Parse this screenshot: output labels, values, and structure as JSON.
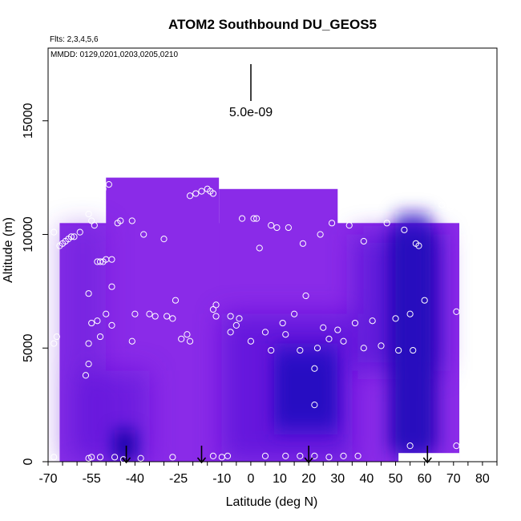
{
  "chart_data": {
    "type": "heatmap",
    "title": "ATOM2 Southbound DU_GEOS5",
    "subtitle_flights": "Flts: 2,3,4,5,6",
    "subtitle_dates": "MMDD: 0129,0201,0203,0205,0210",
    "xlabel": "Latitude (deg N)",
    "ylabel": "Altitude (m)",
    "xlim": [
      -70,
      85
    ],
    "ylim": [
      0,
      18200
    ],
    "x_ticks": [
      -70,
      -55,
      -40,
      -25,
      -10,
      0,
      10,
      20,
      30,
      40,
      50,
      60,
      70,
      80
    ],
    "y_ticks": [
      0,
      5000,
      10000,
      15000
    ],
    "scale_label": "5.0e-09",
    "colors": {
      "base": "#8a2be8",
      "mid": "#5a16d8",
      "dark": "#2f0cc8",
      "darkest": "#0f04a8",
      "points": "#ffffff",
      "arrows": "#000000"
    },
    "field_extent": {
      "lat_min": -66,
      "lat_max": 72,
      "upper_block": {
        "lat": [
          -50,
          -11
        ],
        "alt_top": 12500
      },
      "mid_block": {
        "lat": [
          -11,
          30
        ],
        "alt_top": 12000
      },
      "left_top": 10500
    },
    "dark_regions": [
      {
        "name": "southern low-level core",
        "lat": [
          -47,
          -40
        ],
        "alt": [
          0,
          1400
        ]
      },
      {
        "name": "tropical core",
        "lat": [
          8,
          30
        ],
        "alt": [
          1800,
          4500
        ]
      },
      {
        "name": "northern column",
        "lat": [
          48,
          64
        ],
        "alt": [
          500,
          10200
        ]
      }
    ],
    "arrows_lat": [
      -43,
      -17,
      20,
      61
    ],
    "sample_points": [
      {
        "x": -68,
        "y": 10100
      },
      {
        "x": -66,
        "y": 9500
      },
      {
        "x": -65,
        "y": 9600
      },
      {
        "x": -64,
        "y": 9700
      },
      {
        "x": -63,
        "y": 9800
      },
      {
        "x": -62,
        "y": 9900
      },
      {
        "x": -61,
        "y": 9900
      },
      {
        "x": -59,
        "y": 10100
      },
      {
        "x": -56,
        "y": 10900
      },
      {
        "x": -54,
        "y": 10400
      },
      {
        "x": -55,
        "y": 10600
      },
      {
        "x": -53,
        "y": 8800
      },
      {
        "x": -52,
        "y": 8800
      },
      {
        "x": -51,
        "y": 8800
      },
      {
        "x": -50,
        "y": 8900
      },
      {
        "x": -48,
        "y": 8900
      },
      {
        "x": -53,
        "y": 11800
      },
      {
        "x": -51,
        "y": 12000
      },
      {
        "x": -49,
        "y": 12200
      },
      {
        "x": -46,
        "y": 10500
      },
      {
        "x": -45,
        "y": 10600
      },
      {
        "x": -41,
        "y": 10600
      },
      {
        "x": -37,
        "y": 10000
      },
      {
        "x": -30,
        "y": 9800
      },
      {
        "x": -56,
        "y": 7400
      },
      {
        "x": -48,
        "y": 7700
      },
      {
        "x": -50,
        "y": 6500
      },
      {
        "x": -53,
        "y": 6200
      },
      {
        "x": -55,
        "y": 6100
      },
      {
        "x": -48,
        "y": 6000
      },
      {
        "x": -40,
        "y": 6500
      },
      {
        "x": -35,
        "y": 6500
      },
      {
        "x": -33,
        "y": 6400
      },
      {
        "x": -27,
        "y": 6300
      },
      {
        "x": -29,
        "y": 6400
      },
      {
        "x": -26,
        "y": 7100
      },
      {
        "x": -21,
        "y": 5300
      },
      {
        "x": -22,
        "y": 5600
      },
      {
        "x": -24,
        "y": 5400
      },
      {
        "x": -41,
        "y": 5300
      },
      {
        "x": -52,
        "y": 5500
      },
      {
        "x": -56,
        "y": 5200
      },
      {
        "x": -56,
        "y": 4300
      },
      {
        "x": -57,
        "y": 3800
      },
      {
        "x": -67,
        "y": 5500
      },
      {
        "x": -68,
        "y": 5200
      },
      {
        "x": -68,
        "y": 200
      },
      {
        "x": -56,
        "y": 150
      },
      {
        "x": -55,
        "y": 200
      },
      {
        "x": -52,
        "y": 200
      },
      {
        "x": -47,
        "y": 200
      },
      {
        "x": -44,
        "y": 100
      },
      {
        "x": -38,
        "y": 150
      },
      {
        "x": -27,
        "y": 200
      },
      {
        "x": -13,
        "y": 250
      },
      {
        "x": -10,
        "y": 200
      },
      {
        "x": -8,
        "y": 250
      },
      {
        "x": 5,
        "y": 250
      },
      {
        "x": 12,
        "y": 250
      },
      {
        "x": 17,
        "y": 250
      },
      {
        "x": 22,
        "y": 250
      },
      {
        "x": 27,
        "y": 200
      },
      {
        "x": 32,
        "y": 250
      },
      {
        "x": 37,
        "y": 250
      },
      {
        "x": 55,
        "y": 700
      },
      {
        "x": 71,
        "y": 700
      },
      {
        "x": -21,
        "y": 11700
      },
      {
        "x": -19,
        "y": 11800
      },
      {
        "x": -17,
        "y": 11900
      },
      {
        "x": -15,
        "y": 12000
      },
      {
        "x": -14,
        "y": 11900
      },
      {
        "x": -13,
        "y": 11800
      },
      {
        "x": -3,
        "y": 10700
      },
      {
        "x": 1,
        "y": 10700
      },
      {
        "x": 2,
        "y": 10700
      },
      {
        "x": 7,
        "y": 10400
      },
      {
        "x": 9,
        "y": 10300
      },
      {
        "x": 13,
        "y": 10300
      },
      {
        "x": 18,
        "y": 9600
      },
      {
        "x": 24,
        "y": 10000
      },
      {
        "x": 28,
        "y": 10500
      },
      {
        "x": 34,
        "y": 10400
      },
      {
        "x": 39,
        "y": 9700
      },
      {
        "x": 47,
        "y": 10500
      },
      {
        "x": 53,
        "y": 10200
      },
      {
        "x": 57,
        "y": 9600
      },
      {
        "x": 58,
        "y": 9500
      },
      {
        "x": 66,
        "y": 11300
      },
      {
        "x": 69,
        "y": 11200
      },
      {
        "x": 3,
        "y": 9400
      },
      {
        "x": -12,
        "y": 6900
      },
      {
        "x": -13,
        "y": 6700
      },
      {
        "x": -12,
        "y": 6400
      },
      {
        "x": -7,
        "y": 6400
      },
      {
        "x": -5,
        "y": 6000
      },
      {
        "x": -4,
        "y": 6300
      },
      {
        "x": -7,
        "y": 5700
      },
      {
        "x": 0,
        "y": 5300
      },
      {
        "x": 5,
        "y": 5700
      },
      {
        "x": 7,
        "y": 4900
      },
      {
        "x": 11,
        "y": 6100
      },
      {
        "x": 12,
        "y": 5600
      },
      {
        "x": 15,
        "y": 6500
      },
      {
        "x": 17,
        "y": 4900
      },
      {
        "x": 19,
        "y": 7300
      },
      {
        "x": 23,
        "y": 5000
      },
      {
        "x": 25,
        "y": 5900
      },
      {
        "x": 27,
        "y": 5400
      },
      {
        "x": 30,
        "y": 5800
      },
      {
        "x": 32,
        "y": 5300
      },
      {
        "x": 36,
        "y": 6100
      },
      {
        "x": 39,
        "y": 5000
      },
      {
        "x": 42,
        "y": 6200
      },
      {
        "x": 45,
        "y": 5100
      },
      {
        "x": 50,
        "y": 6300
      },
      {
        "x": 51,
        "y": 4900
      },
      {
        "x": 55,
        "y": 6500
      },
      {
        "x": 56,
        "y": 4900
      },
      {
        "x": 60,
        "y": 7100
      },
      {
        "x": 71,
        "y": 6600
      },
      {
        "x": 22,
        "y": 4100
      },
      {
        "x": 22,
        "y": 2500
      }
    ]
  }
}
